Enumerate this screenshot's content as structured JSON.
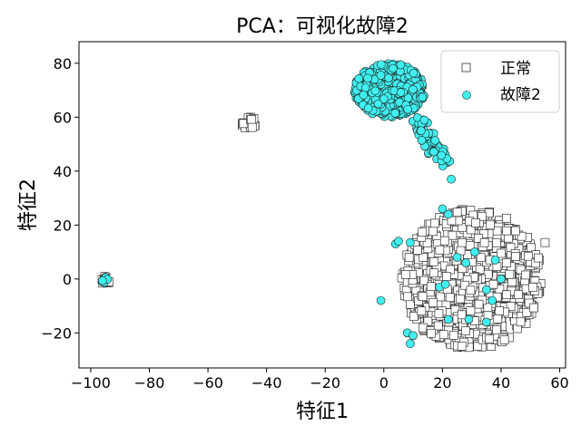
{
  "chart_data": {
    "type": "scatter",
    "title": "PCA：可视化故障2",
    "xlabel": "特征1",
    "ylabel": "特征2",
    "xlim": [
      -104,
      62
    ],
    "ylim": [
      -33,
      88
    ],
    "xticks": [
      -100,
      -80,
      -60,
      -40,
      -20,
      0,
      20,
      40,
      60
    ],
    "yticks": [
      -20,
      0,
      20,
      40,
      60,
      80
    ],
    "xtick_labels": [
      "−100",
      "−80",
      "−60",
      "−40",
      "−20",
      "0",
      "20",
      "40",
      "60"
    ],
    "ytick_labels": [
      "−20",
      "0",
      "20",
      "40",
      "60",
      "80"
    ],
    "grid": false,
    "legend_position": "top-right",
    "series": [
      {
        "name": "正常",
        "marker": "square",
        "color": "#ffffff",
        "edge_color": "#333333",
        "clusters": [
          {
            "center": [
              30,
              0
            ],
            "radius_x": 24,
            "radius_y": 26,
            "count": 900
          },
          {
            "center": [
              -46,
              58
            ],
            "radius_x": 2.5,
            "radius_y": 2.5,
            "count": 20
          },
          {
            "center": [
              -95,
              -0.5
            ],
            "radius_x": 1.5,
            "radius_y": 1.5,
            "count": 10
          }
        ],
        "points": [
          [
            55,
            13.5
          ]
        ]
      },
      {
        "name": "故障2",
        "marker": "circle",
        "color": "#40f0f0",
        "edge_color": "#222222",
        "clusters": [
          {
            "center": [
              2,
              70
            ],
            "radius_x": 12,
            "radius_y": 10,
            "count": 450
          },
          {
            "center": [
              -95,
              -0.5
            ],
            "radius_x": 1.2,
            "radius_y": 1.2,
            "count": 6
          }
        ],
        "trail": {
          "from": [
            10,
            60
          ],
          "to": [
            22,
            42
          ],
          "count": 60,
          "spread": 2.5
        },
        "points": [
          [
            20,
            26
          ],
          [
            22,
            24
          ],
          [
            23,
            37
          ],
          [
            9,
            13.5
          ],
          [
            4,
            13
          ],
          [
            38,
            7
          ],
          [
            19,
            -3
          ],
          [
            -1,
            -8
          ],
          [
            5,
            14
          ],
          [
            25,
            8
          ],
          [
            31,
            10
          ],
          [
            35,
            -4
          ],
          [
            22,
            -15
          ],
          [
            29,
            -15
          ],
          [
            35,
            -16
          ],
          [
            40,
            0
          ],
          [
            8,
            -20
          ],
          [
            9,
            -24
          ],
          [
            10,
            -21
          ],
          [
            37,
            -8
          ],
          [
            21,
            -2
          ],
          [
            28,
            6
          ]
        ]
      }
    ]
  }
}
